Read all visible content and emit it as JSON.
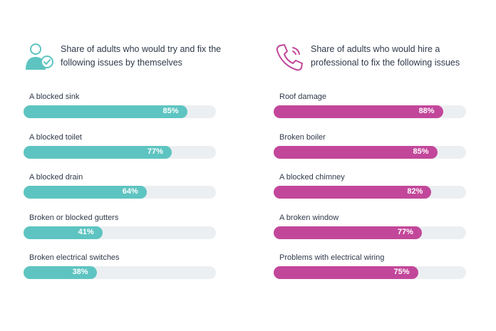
{
  "chart_data": [
    {
      "type": "bar",
      "orientation": "horizontal",
      "title": "Share of adults who would try and fix the following issues by themselves",
      "icon": "person-check-icon",
      "color": "#5ec4c1",
      "track_color": "#eceff2",
      "value_suffix": "%",
      "categories": [
        "A blocked sink",
        "A blocked toilet",
        "A blocked drain",
        "Broken or blocked gutters",
        "Broken electrical switches"
      ],
      "values": [
        85,
        77,
        64,
        41,
        38
      ],
      "xlim": [
        0,
        100
      ]
    },
    {
      "type": "bar",
      "orientation": "horizontal",
      "title": "Share of adults who would hire a professional to fix the following issues",
      "icon": "phone-icon",
      "color": "#c2479a",
      "track_color": "#eceff2",
      "value_suffix": "%",
      "categories": [
        "Roof damage",
        "Broken boiler",
        "A blocked chimney",
        "A broken window",
        "Problems with electrical wiring"
      ],
      "values": [
        88,
        85,
        82,
        77,
        75
      ],
      "xlim": [
        0,
        100
      ]
    }
  ]
}
